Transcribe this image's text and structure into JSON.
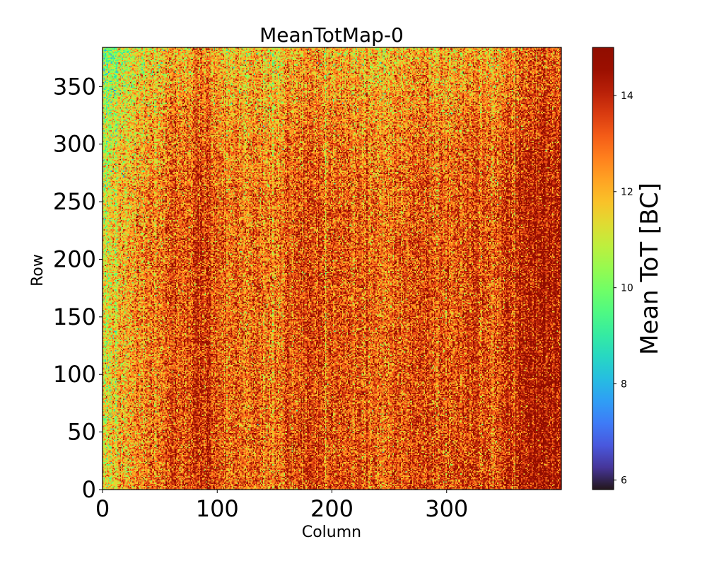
{
  "chart_data": {
    "type": "heatmap",
    "title": "MeanTotMap-0",
    "xlabel": "Column",
    "ylabel": "Row",
    "colorbar_label": "Mean ToT [BC]",
    "colormap": "turbo",
    "xlim": [
      0,
      400
    ],
    "ylim": [
      0,
      384
    ],
    "clim": [
      5.8,
      15
    ],
    "columns": 400,
    "rows": 384,
    "x_ticks": [
      0,
      100,
      200,
      300
    ],
    "y_ticks": [
      0,
      50,
      100,
      150,
      200,
      250,
      300,
      350
    ],
    "colorbar_ticks": [
      6,
      8,
      10,
      12,
      14
    ],
    "column_profile": [
      {
        "col": 0,
        "mean": 11.3
      },
      {
        "col": 15,
        "mean": 11.9
      },
      {
        "col": 30,
        "mean": 12.6
      },
      {
        "col": 50,
        "mean": 13.0
      },
      {
        "col": 70,
        "mean": 13.6
      },
      {
        "col": 90,
        "mean": 13.8
      },
      {
        "col": 110,
        "mean": 13.2
      },
      {
        "col": 130,
        "mean": 13.1
      },
      {
        "col": 150,
        "mean": 12.8
      },
      {
        "col": 170,
        "mean": 13.7
      },
      {
        "col": 200,
        "mean": 13.4
      },
      {
        "col": 230,
        "mean": 13.3
      },
      {
        "col": 250,
        "mean": 12.9
      },
      {
        "col": 270,
        "mean": 13.6
      },
      {
        "col": 300,
        "mean": 13.4
      },
      {
        "col": 320,
        "mean": 13.6
      },
      {
        "col": 340,
        "mean": 13.3
      },
      {
        "col": 355,
        "mean": 14.1
      },
      {
        "col": 375,
        "mean": 14.6
      },
      {
        "col": 400,
        "mean": 14.3
      }
    ],
    "row_profile": [
      {
        "row": 0,
        "offset": 0.0
      },
      {
        "row": 250,
        "offset": -0.2
      },
      {
        "row": 320,
        "offset": -0.7
      },
      {
        "row": 384,
        "offset": -1.4
      }
    ],
    "noise_std": 1.1
  }
}
